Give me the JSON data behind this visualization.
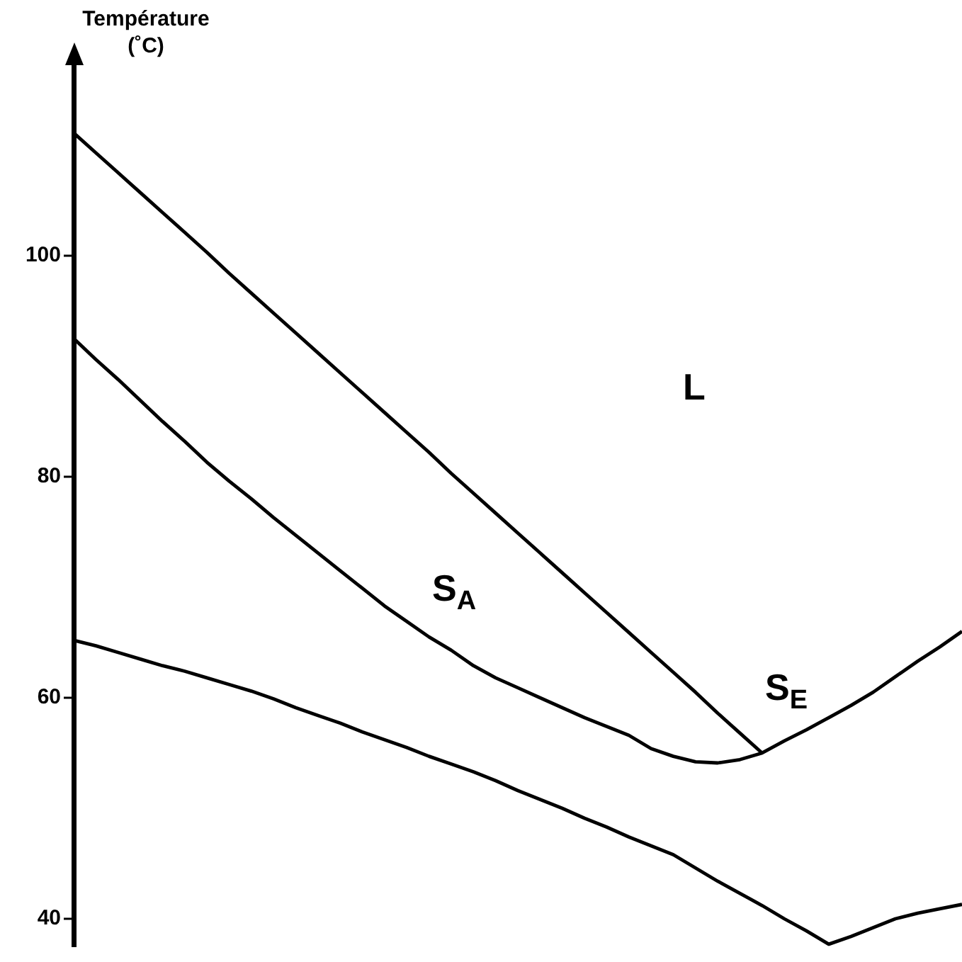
{
  "chart_data": {
    "type": "line",
    "ylabel": "Température (˚C)",
    "tick_labels": "y",
    "ylim": [
      37.5,
      118
    ],
    "yticks": [
      40,
      60,
      80,
      100
    ],
    "annotations": [
      "L",
      "S$_{A}$",
      "S$_{E}$"
    ],
    "categories": [
      null,
      null,
      null,
      null,
      null,
      null,
      null,
      null,
      null,
      null,
      null,
      null,
      null,
      null,
      null,
      null,
      null,
      null,
      null,
      null,
      null,
      null,
      null,
      null,
      null,
      null,
      null,
      null,
      null,
      null,
      null,
      null,
      null,
      null,
      null,
      null,
      null,
      null,
      null,
      null,
      null
    ],
    "series": [
      {
        "color": "#000000",
        "values": [
          111.1,
          109.3,
          107.5,
          105.7,
          103.9,
          102.1,
          100.3,
          98.4,
          96.6,
          94.8,
          93.0,
          91.2,
          89.4,
          87.6,
          85.8,
          84.0,
          82.2,
          80.3,
          78.5,
          76.7,
          74.9,
          73.1,
          71.3,
          69.5,
          67.7,
          65.9,
          64.1,
          62.3,
          60.5,
          58.6,
          56.8,
          55.0,
          null,
          null,
          null,
          null,
          null,
          null,
          null,
          null,
          null
        ]
      },
      {
        "color": "#000000",
        "values": [
          92.5,
          90.6,
          88.8,
          86.9,
          85.0,
          83.2,
          81.3,
          79.6,
          78.0,
          76.3,
          74.7,
          73.1,
          71.5,
          69.9,
          68.3,
          66.9,
          65.5,
          64.3,
          62.9,
          61.8,
          60.9,
          60.0,
          59.1,
          58.2,
          57.4,
          56.6,
          55.4,
          54.7,
          54.2,
          54.1,
          54.4,
          55.0,
          56.1,
          57.1,
          58.2,
          59.3,
          60.5,
          61.9,
          63.3,
          64.6,
          66.0
        ]
      },
      {
        "color": "#000000",
        "values": [
          65.2,
          64.7,
          64.1,
          63.5,
          62.9,
          62.4,
          61.8,
          61.2,
          60.6,
          59.9,
          59.1,
          58.4,
          57.7,
          56.9,
          56.2,
          55.5,
          54.7,
          54.0,
          53.3,
          52.5,
          51.6,
          50.8,
          50.0,
          49.1,
          48.3,
          47.4,
          46.6,
          45.8,
          44.6,
          43.4,
          42.3,
          41.2,
          40.0,
          38.9,
          37.7,
          38.4,
          39.2,
          40.0,
          40.5,
          40.9,
          41.3
        ]
      }
    ]
  }
}
